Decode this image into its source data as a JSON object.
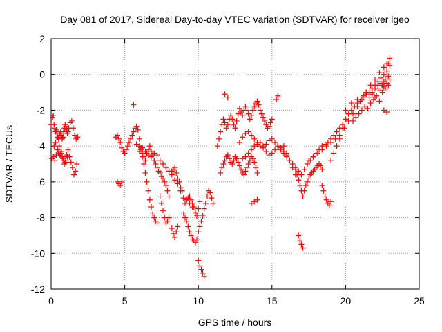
{
  "chart_data": {
    "type": "scatter",
    "title": "Day 081 of 2017, Sidereal Day-to-day VTEC variation (SDTVAR) for receiver igeo",
    "xlabel": "GPS time / hours",
    "ylabel": "SDTVAR / TECUs",
    "xlim": [
      0,
      25
    ],
    "ylim": [
      -12,
      2
    ],
    "xticks": [
      0,
      5,
      10,
      15,
      20,
      25
    ],
    "yticks": [
      2,
      0,
      -2,
      -4,
      -6,
      -8,
      -10,
      -12
    ],
    "xtick_labels": [
      "0",
      "5",
      "10",
      "15",
      "20",
      "25"
    ],
    "ytick_labels": [
      "2",
      "0",
      "-2",
      "-4",
      "-6",
      "-8",
      "-10",
      "-12"
    ],
    "grid": true,
    "marker": "+",
    "color": "#ff0000",
    "series": [
      {
        "name": "SDTVAR",
        "x": [
          0.0,
          0.1,
          0.15,
          0.2,
          0.25,
          0.3,
          0.35,
          0.4,
          0.45,
          0.5,
          0.55,
          0.6,
          0.65,
          0.7,
          0.75,
          0.8,
          0.85,
          0.9,
          0.95,
          1.0,
          1.05,
          1.1,
          1.15,
          1.2,
          1.3,
          1.4,
          1.5,
          1.6,
          1.7,
          1.8,
          0.05,
          0.15,
          0.25,
          0.35,
          0.45,
          0.55,
          0.65,
          0.75,
          0.85,
          0.95,
          1.05,
          1.15,
          1.25,
          1.35,
          1.45,
          1.55,
          1.65,
          1.75,
          0.2,
          0.3,
          0.4,
          0.5,
          0.6,
          0.7,
          0.8,
          0.9,
          1.0,
          1.1,
          4.4,
          4.5,
          4.6,
          4.7,
          4.8,
          4.9,
          5.0,
          5.1,
          5.2,
          5.3,
          5.4,
          5.5,
          5.6,
          5.7,
          5.8,
          5.9,
          6.0,
          6.1,
          6.2,
          6.3,
          6.4,
          6.5,
          6.6,
          6.7,
          6.8,
          6.9,
          7.0,
          7.1,
          7.2,
          4.5,
          4.6,
          4.7,
          4.8,
          5.6,
          5.8,
          6.0,
          6.2,
          6.4,
          6.6,
          6.8,
          7.0,
          7.2,
          7.4,
          7.6,
          7.8,
          8.0,
          8.2,
          8.4,
          8.6,
          8.8,
          9.0,
          9.2,
          9.4,
          9.6,
          9.8,
          6.0,
          6.1,
          6.2,
          6.3,
          6.4,
          6.5,
          6.6,
          6.7,
          6.8,
          6.9,
          7.0,
          7.1,
          7.2,
          7.3,
          7.4,
          7.5,
          7.6,
          7.7,
          7.8,
          7.9,
          8.0,
          7.4,
          7.5,
          7.6,
          7.7,
          7.8,
          7.9,
          8.0,
          8.2,
          8.3,
          8.4,
          8.5,
          8.6,
          8.2,
          8.3,
          8.4,
          8.5,
          8.6,
          8.7,
          8.8,
          8.9,
          9.0,
          9.1,
          9.2,
          9.3,
          9.4,
          9.5,
          9.6,
          9.7,
          9.8,
          9.9,
          10.0,
          10.1,
          9.0,
          9.1,
          9.2,
          9.3,
          9.4,
          9.5,
          9.6,
          9.7,
          9.8,
          9.9,
          10.0,
          10.1,
          10.2,
          10.3,
          10.4,
          10.5,
          10.6,
          10.7,
          10.8,
          10.9,
          11.0,
          10.0,
          10.1,
          10.2,
          10.3,
          10.4,
          11.3,
          11.4,
          11.5,
          11.6,
          11.7,
          11.8,
          11.9,
          12.0,
          12.1,
          12.2,
          12.3,
          12.4,
          12.5,
          12.6,
          12.7,
          12.8,
          12.9,
          13.0,
          13.1,
          13.2,
          13.3,
          13.4,
          13.5,
          13.6,
          13.7,
          13.8,
          13.9,
          14.0,
          14.1,
          14.2,
          14.3,
          14.4,
          14.5,
          14.6,
          14.7,
          14.8,
          14.9,
          15.0,
          11.5,
          11.6,
          11.7,
          11.8,
          11.9,
          12.0,
          12.1,
          12.2,
          12.3,
          12.4,
          12.5,
          12.6,
          12.7,
          12.8,
          12.9,
          13.0,
          13.1,
          13.2,
          13.3,
          13.4,
          13.5,
          13.6,
          13.7,
          13.8,
          13.9,
          14.0,
          12.8,
          13.0,
          13.2,
          13.4,
          13.6,
          13.8,
          14.0,
          14.2,
          14.4,
          14.6,
          14.8,
          15.0,
          15.2,
          15.4,
          15.6,
          15.8,
          16.0,
          13.0,
          13.2,
          13.4,
          13.6,
          13.8,
          14.0,
          14.2,
          14.4,
          14.6,
          14.8,
          15.0,
          15.2,
          15.4,
          15.6,
          15.8,
          16.0,
          16.2,
          16.4,
          16.6,
          16.8,
          13.6,
          13.8,
          14.0,
          11.8,
          12.0,
          15.3,
          15.4,
          15.8,
          16.0,
          16.2,
          16.4,
          16.6,
          16.8,
          17.0,
          17.2,
          17.4,
          17.6,
          17.8,
          18.0,
          18.2,
          18.4,
          18.6,
          18.8,
          19.0,
          19.2,
          19.4,
          19.6,
          19.8,
          16.6,
          16.7,
          16.8,
          16.9,
          17.0,
          17.1,
          17.2,
          17.3,
          17.4,
          17.5,
          17.6,
          17.7,
          17.8,
          17.9,
          18.0,
          18.1,
          18.2,
          18.3,
          18.4,
          16.8,
          16.9,
          17.0,
          17.1,
          18.4,
          18.5,
          18.6,
          18.7,
          18.8,
          18.9,
          19.0,
          17.5,
          17.8,
          18.1,
          18.4,
          18.7,
          19.0,
          19.3,
          19.6,
          19.9,
          20.2,
          20.5,
          20.8,
          21.1,
          21.4,
          21.7,
          22.0,
          22.3,
          22.6,
          22.9,
          19.0,
          19.2,
          19.4,
          19.6,
          19.8,
          20.0,
          20.2,
          20.4,
          20.6,
          20.8,
          21.0,
          21.2,
          21.4,
          21.6,
          21.8,
          22.0,
          22.2,
          22.4,
          22.6,
          22.8,
          23.0,
          20.0,
          20.2,
          20.4,
          20.6,
          20.8,
          21.0,
          21.2,
          21.4,
          21.6,
          21.8,
          22.0,
          22.2,
          22.4,
          22.6,
          22.8,
          23.0,
          20.5,
          20.7,
          20.9,
          21.1,
          21.3,
          21.5,
          21.7,
          21.9,
          22.1,
          22.3,
          22.5,
          22.7,
          22.9,
          21.8,
          22.0,
          22.2,
          22.4,
          22.6,
          22.8,
          23.0,
          22.5,
          22.7,
          22.9,
          22.6,
          22.8
        ],
        "y": [
          -2.8,
          -2.4,
          -2.3,
          -2.8,
          -3.0,
          -3.2,
          -3.1,
          -3.3,
          -3.5,
          -3.6,
          -3.4,
          -3.3,
          -3.2,
          -3.4,
          -3.6,
          -3.5,
          -3.2,
          -3.0,
          -2.8,
          -2.9,
          -3.1,
          -3.3,
          -3.2,
          -3.0,
          -2.7,
          -2.6,
          -3.0,
          -3.4,
          -3.6,
          -3.5,
          -4.7,
          -4.6,
          -4.8,
          -4.5,
          -4.2,
          -4.0,
          -4.4,
          -4.6,
          -4.8,
          -4.9,
          -4.5,
          -4.2,
          -4.6,
          -4.9,
          -5.2,
          -5.6,
          -5.4,
          -5.0,
          -4.0,
          -3.8,
          -4.2,
          -4.4,
          -4.5,
          -4.3,
          -4.7,
          -5.0,
          -4.8,
          -4.6,
          -3.5,
          -3.4,
          -3.6,
          -3.8,
          -4.1,
          -4.3,
          -4.4,
          -4.2,
          -4.0,
          -3.8,
          -3.6,
          -3.4,
          -3.2,
          -3.0,
          -2.9,
          -3.1,
          -3.6,
          -4.2,
          -4.6,
          -5.0,
          -5.5,
          -6.0,
          -6.5,
          -7.0,
          -7.4,
          -7.8,
          -8.0,
          -8.2,
          -8.3,
          -6.0,
          -6.1,
          -6.2,
          -6.0,
          -1.7,
          -3.9,
          -4.0,
          -4.1,
          -4.3,
          -4.5,
          -4.6,
          -4.4,
          -4.5,
          -4.8,
          -5.0,
          -5.2,
          -5.4,
          -5.6,
          -5.9,
          -6.1,
          -6.5,
          -6.9,
          -7.0,
          -7.2,
          -7.4,
          -7.8,
          -4.3,
          -4.1,
          -4.4,
          -4.6,
          -4.8,
          -4.4,
          -4.2,
          -4.0,
          -4.3,
          -4.5,
          -4.8,
          -5.0,
          -5.2,
          -5.4,
          -5.5,
          -5.7,
          -5.8,
          -6.0,
          -6.2,
          -6.5,
          -6.8,
          -6.8,
          -7.2,
          -7.6,
          -8.0,
          -8.3,
          -8.2,
          -8.0,
          -8.6,
          -8.9,
          -9.1,
          -8.8,
          -8.5,
          -5.4,
          -5.3,
          -5.2,
          -5.5,
          -5.8,
          -6.0,
          -6.3,
          -6.5,
          -6.9,
          -7.2,
          -7.0,
          -6.9,
          -6.8,
          -7.0,
          -7.2,
          -7.4,
          -7.7,
          -7.9,
          -7.5,
          -7.1,
          -7.8,
          -8.0,
          -8.2,
          -8.5,
          -8.8,
          -9.0,
          -9.2,
          -9.3,
          -9.4,
          -9.2,
          -8.8,
          -8.5,
          -8.2,
          -7.9,
          -7.5,
          -7.2,
          -6.8,
          -6.5,
          -6.6,
          -6.9,
          -7.2,
          -10.4,
          -10.7,
          -10.9,
          -11.1,
          -11.3,
          -4.0,
          -3.6,
          -3.2,
          -2.8,
          -2.5,
          -2.7,
          -3.0,
          -2.8,
          -2.5,
          -2.3,
          -2.5,
          -2.8,
          -3.0,
          -2.6,
          -2.2,
          -1.9,
          -2.1,
          -2.3,
          -2.0,
          -1.8,
          -2.0,
          -2.2,
          -2.5,
          -2.3,
          -2.0,
          -1.8,
          -1.6,
          -1.5,
          -1.7,
          -2.0,
          -2.2,
          -2.4,
          -2.6,
          -2.8,
          -3.0,
          -2.9,
          -2.7,
          -2.5,
          -5.5,
          -5.2,
          -5.0,
          -4.8,
          -4.6,
          -4.5,
          -4.7,
          -4.9,
          -5.0,
          -4.8,
          -4.6,
          -4.7,
          -4.9,
          -5.1,
          -5.3,
          -5.5,
          -5.6,
          -5.4,
          -5.2,
          -5.0,
          -4.8,
          -4.6,
          -4.7,
          -4.9,
          -5.2,
          -5.5,
          -3.8,
          -3.5,
          -3.3,
          -3.2,
          -3.4,
          -3.6,
          -3.8,
          -4.0,
          -4.1,
          -3.9,
          -3.7,
          -3.6,
          -3.8,
          -4.0,
          -4.2,
          -4.4,
          -4.5,
          -4.7,
          -4.6,
          -4.4,
          -4.2,
          -4.0,
          -3.9,
          -3.8,
          -4.0,
          -4.3,
          -4.5,
          -4.4,
          -4.2,
          -4.0,
          -4.1,
          -4.3,
          -4.6,
          -4.8,
          -5.0,
          -5.2,
          -5.4,
          -7.2,
          -7.1,
          -7.0,
          -1.1,
          -1.3,
          -1.4,
          -1.2,
          -4.0,
          -4.4,
          -4.8,
          -5.2,
          -5.6,
          -5.9,
          -5.6,
          -5.3,
          -5.0,
          -4.8,
          -4.6,
          -4.4,
          -4.2,
          -4.0,
          -3.9,
          -3.8,
          -3.6,
          -3.4,
          -3.2,
          -3.0,
          -2.8,
          -5.3,
          -5.6,
          -5.9,
          -6.2,
          -6.5,
          -6.8,
          -6.5,
          -6.2,
          -6.0,
          -5.8,
          -5.6,
          -5.5,
          -5.4,
          -5.3,
          -5.2,
          -5.1,
          -5.0,
          -5.1,
          -5.3,
          -9.0,
          -9.3,
          -9.5,
          -9.7,
          -6.2,
          -6.5,
          -6.8,
          -7.0,
          -7.2,
          -7.3,
          -7.1,
          -4.8,
          -4.6,
          -4.4,
          -4.2,
          -4.0,
          -3.8,
          -3.6,
          -3.4,
          -3.0,
          -2.6,
          -2.2,
          -1.8,
          -1.4,
          -1.0,
          -0.6,
          -0.3,
          0.1,
          0.4,
          0.6,
          -4.8,
          -4.4,
          -4.0,
          -3.6,
          -3.0,
          -2.5,
          -2.2,
          -2.0,
          -1.8,
          -1.6,
          -1.5,
          -1.3,
          -1.1,
          -1.0,
          -0.8,
          -0.6,
          -0.4,
          -0.2,
          0.0,
          0.2,
          0.5,
          -2.0,
          -2.2,
          -1.6,
          -1.8,
          -1.4,
          -1.5,
          -1.2,
          -1.0,
          -1.3,
          -1.1,
          -0.8,
          -0.6,
          -0.9,
          -0.7,
          -0.5,
          -0.3,
          -2.6,
          -2.4,
          -2.2,
          -2.0,
          -1.8,
          -1.9,
          -1.6,
          -1.4,
          -1.2,
          -1.5,
          -1.0,
          -0.8,
          -0.6,
          -1.0,
          -1.3,
          -0.8,
          -0.5,
          -0.4,
          0.6,
          0.9,
          -0.6,
          -0.3,
          -0.1,
          -2.0,
          -2.1
        ]
      }
    ]
  }
}
